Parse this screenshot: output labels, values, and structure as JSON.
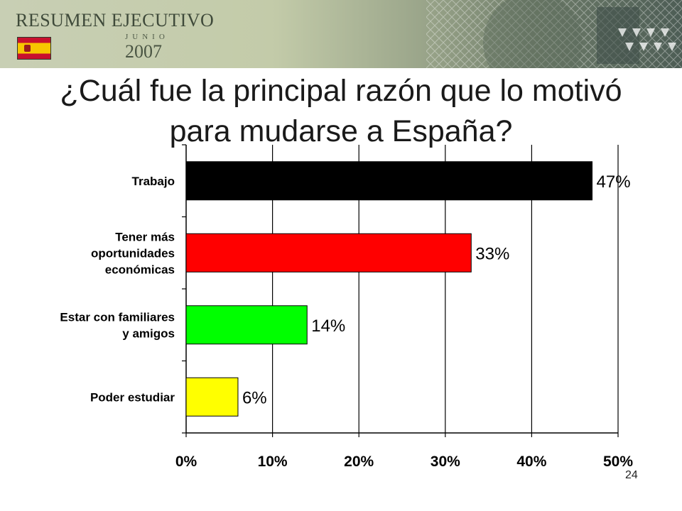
{
  "banner": {
    "title": "RESUMEN EJECUTIVO",
    "month": "JUNIO",
    "year": "2007",
    "flag": "spain-flag"
  },
  "slide": {
    "title": "¿Cuál fue la principal razón que lo motivó para mudarse a España?",
    "page_number": "24"
  },
  "chart_data": {
    "type": "bar",
    "orientation": "horizontal",
    "categories": [
      [
        "Trabajo"
      ],
      [
        "Tener más",
        "oportunidades",
        "económicas"
      ],
      [
        "Estar con familiares",
        "y amigos"
      ],
      [
        "Poder estudiar"
      ]
    ],
    "values": [
      47,
      33,
      14,
      6
    ],
    "value_labels": [
      "47%",
      "33%",
      "14%",
      "6%"
    ],
    "colors": [
      "#000000",
      "#ff0000",
      "#00ff00",
      "#ffff00"
    ],
    "xlim": [
      0,
      50
    ],
    "xticks": [
      0,
      10,
      20,
      30,
      40,
      50
    ],
    "xtick_labels": [
      "0%",
      "10%",
      "20%",
      "30%",
      "40%",
      "50%"
    ],
    "grid": "vertical",
    "legend": "none"
  }
}
